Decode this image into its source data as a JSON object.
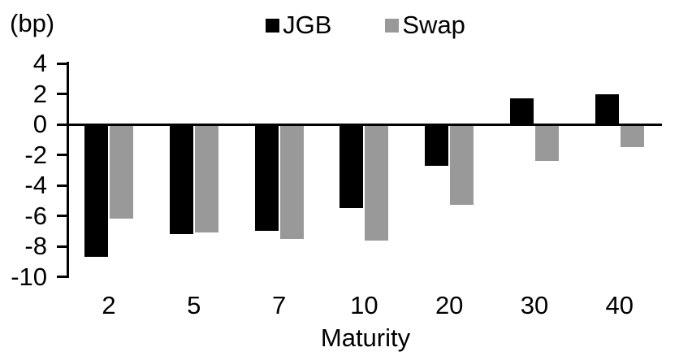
{
  "chart_data": {
    "type": "bar",
    "title": "",
    "unit_label": "(bp)",
    "xlabel": "Maturity",
    "ylabel": "",
    "categories": [
      "2",
      "5",
      "7",
      "10",
      "20",
      "30",
      "40"
    ],
    "series": [
      {
        "name": "JGB",
        "color": "#000000",
        "values": [
          -8.7,
          -7.2,
          -7.0,
          -5.5,
          -2.7,
          1.7,
          2.0
        ]
      },
      {
        "name": "Swap",
        "color": "#999999",
        "values": [
          -6.2,
          -7.1,
          -7.5,
          -7.6,
          -5.3,
          -2.4,
          -1.5
        ]
      }
    ],
    "ylim": [
      -10,
      4
    ],
    "yticks": [
      4,
      2,
      0,
      -2,
      -4,
      -6,
      -8,
      -10
    ],
    "grid": false,
    "legend_position": "top-center",
    "background_color": "#ffffff",
    "axis_color": "#000000"
  }
}
